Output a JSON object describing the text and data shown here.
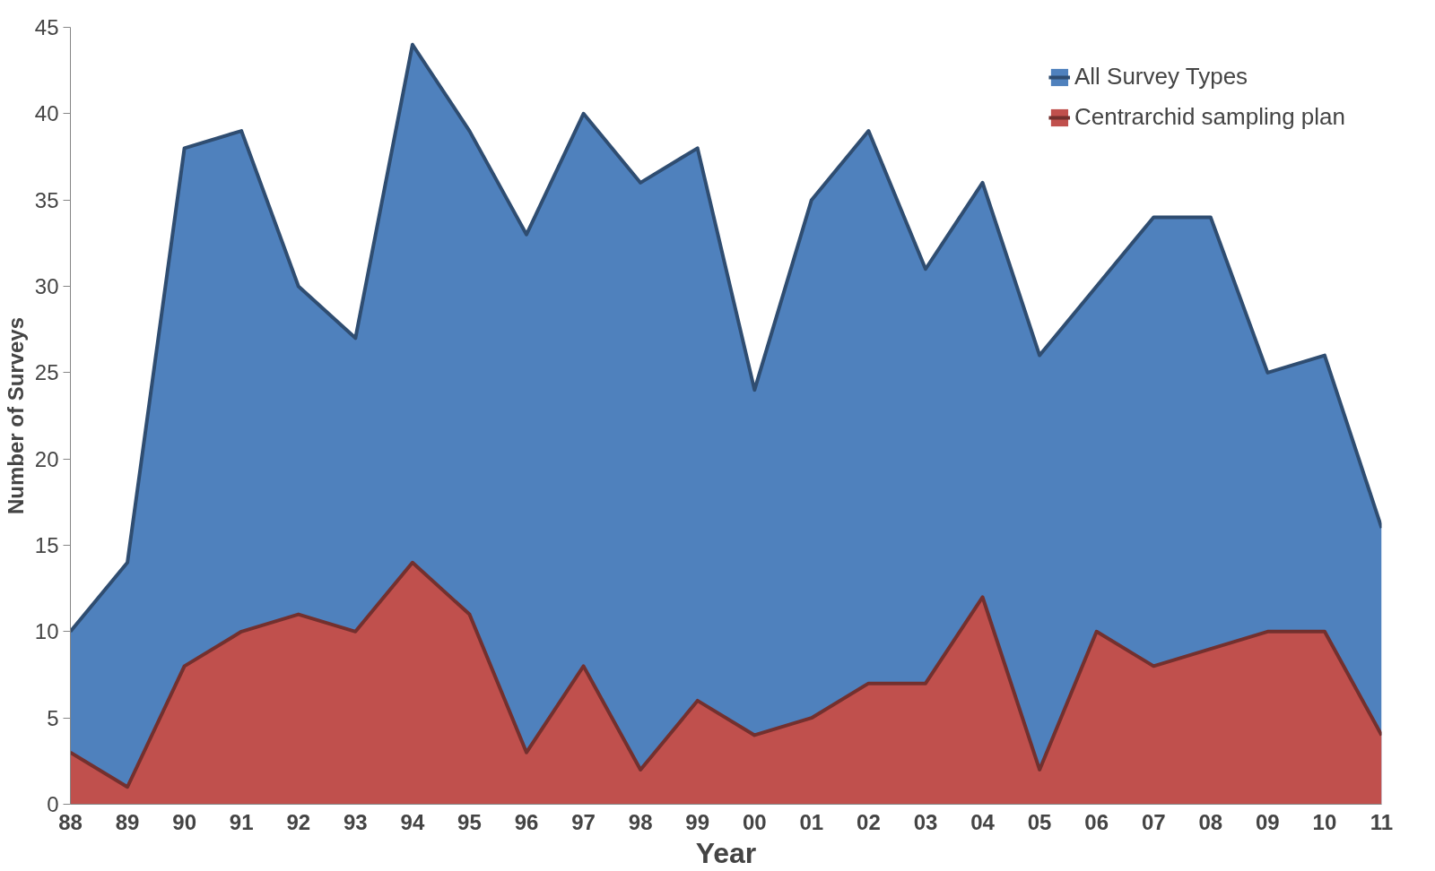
{
  "chart_data": {
    "type": "area",
    "xlabel": "Year",
    "ylabel": "Number of Surveys",
    "categories": [
      "88",
      "89",
      "90",
      "91",
      "92",
      "93",
      "94",
      "95",
      "96",
      "97",
      "98",
      "99",
      "00",
      "01",
      "02",
      "03",
      "04",
      "05",
      "06",
      "07",
      "08",
      "09",
      "10",
      "11"
    ],
    "series": [
      {
        "name": "All Survey Types",
        "color": "#4f81bd",
        "values": [
          10,
          14,
          38,
          39,
          30,
          27,
          44,
          39,
          33,
          40,
          36,
          38,
          24,
          35,
          39,
          31,
          36,
          26,
          30,
          34,
          34,
          25,
          26,
          16
        ]
      },
      {
        "name": "Centrarchid sampling plan",
        "color": "#c0504d",
        "values": [
          3,
          1,
          8,
          10,
          11,
          10,
          14,
          11,
          3,
          8,
          2,
          6,
          4,
          5,
          7,
          7,
          12,
          2,
          10,
          8,
          9,
          10,
          10,
          4
        ]
      }
    ],
    "ylim": [
      0,
      45
    ],
    "yticks": [
      0,
      5,
      10,
      15,
      20,
      25,
      30,
      35,
      40,
      45
    ],
    "grid": false,
    "legend": "top right"
  }
}
